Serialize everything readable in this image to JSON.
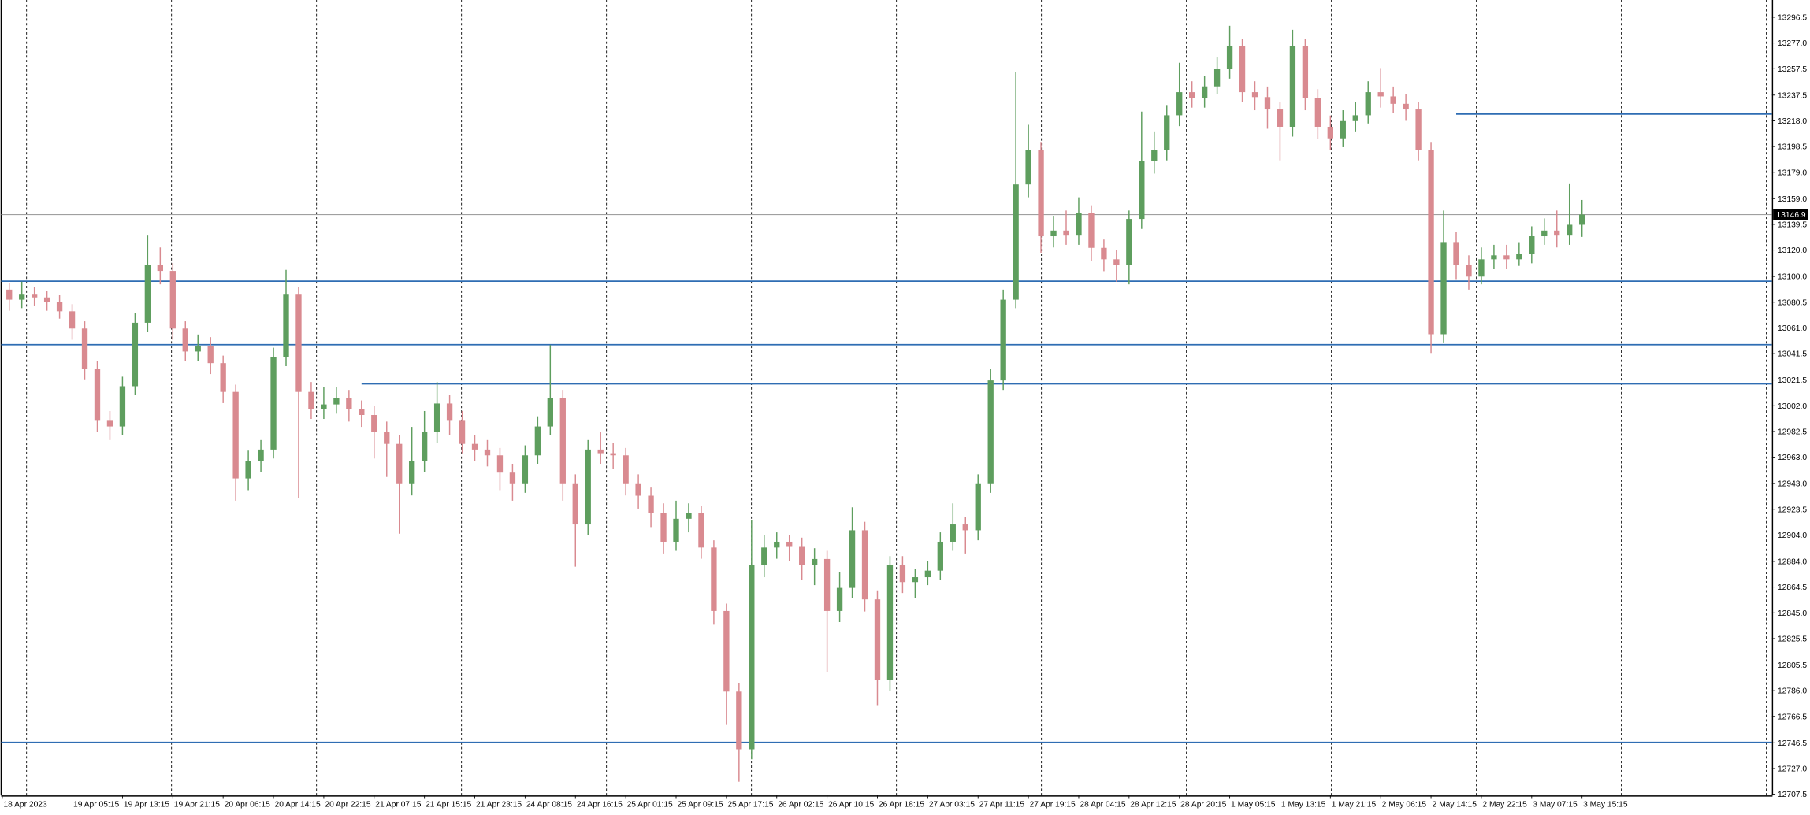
{
  "chart_data": {
    "type": "candlestick",
    "categories": [
      "18 Apr 2023",
      null,
      null,
      null,
      null,
      "19 Apr 05:15",
      null,
      null,
      null,
      "19 Apr 13:15",
      null,
      null,
      null,
      "19 Apr 21:15",
      null,
      null,
      null,
      "20 Apr 06:15",
      null,
      null,
      null,
      "20 Apr 14:15",
      null,
      null,
      null,
      "20 Apr 22:15",
      null,
      null,
      null,
      "21 Apr 07:15",
      null,
      null,
      null,
      "21 Apr 15:15",
      null,
      null,
      null,
      "21 Apr 23:15",
      null,
      null,
      null,
      "24 Apr 08:15",
      null,
      null,
      null,
      "24 Apr 16:15",
      null,
      null,
      null,
      "25 Apr 01:15",
      null,
      null,
      null,
      "25 Apr 09:15",
      null,
      null,
      null,
      "25 Apr 17:15",
      null,
      null,
      null,
      "26 Apr 02:15",
      null,
      null,
      null,
      "26 Apr 10:15",
      null,
      null,
      null,
      "26 Apr 18:15",
      null,
      null,
      null,
      "27 Apr 03:15",
      null,
      null,
      null,
      "27 Apr 11:15",
      null,
      null,
      null,
      "27 Apr 19:15",
      null,
      null,
      null,
      "28 Apr 04:15",
      null,
      null,
      null,
      "28 Apr 12:15",
      null,
      null,
      null,
      "28 Apr 20:15",
      null,
      null,
      null,
      "1 May 05:15",
      null,
      null,
      null,
      "1 May 13:15",
      null,
      null,
      null,
      "1 May 21:15",
      null,
      null,
      null,
      "2 May 06:15",
      null,
      null,
      null,
      "2 May 14:15",
      null,
      null,
      null,
      "2 May 22:15",
      null,
      null,
      null,
      "3 May 07:15",
      null,
      null,
      null,
      "3 May 15:15"
    ],
    "open": [
      13090.0,
      13082.4,
      13086.8,
      13084.1,
      13080.6,
      13073.6,
      13060.5,
      13030.0,
      12990.6,
      12986.3,
      13016.8,
      13064.9,
      13108.6,
      13104.2,
      13060.5,
      13043.1,
      13047.4,
      13034.3,
      13012.5,
      12946.9,
      12960.0,
      12968.8,
      13038.7,
      13086.8,
      13012.5,
      12999.4,
      13003.0,
      13008.1,
      12999.4,
      12995.0,
      12981.9,
      12973.1,
      12942.6,
      12960.0,
      12981.9,
      13003.7,
      12990.6,
      12973.1,
      12968.8,
      12964.4,
      12951.3,
      12942.6,
      12964.4,
      12986.3,
      13008.1,
      12942.6,
      12912.0,
      12968.8,
      12966.0,
      12964.4,
      12942.6,
      12933.8,
      12920.7,
      12898.9,
      12916.3,
      12920.7,
      12894.5,
      12846.4,
      12785.3,
      12741.6,
      12881.4,
      12894.5,
      12898.9,
      12895.0,
      12881.4,
      12885.8,
      12846.4,
      12863.9,
      12907.6,
      12855.2,
      12794.0,
      12881.4,
      12868.3,
      12872.0,
      12877.0,
      12898.9,
      12912.0,
      12907.6,
      12942.6,
      13021.2,
      13082.4,
      13169.8,
      13196.0,
      13130.5,
      13134.8,
      13131.0,
      13147.9,
      13121.7,
      13113.0,
      13108.6,
      13143.6,
      13187.3,
      13196.0,
      13222.2,
      13239.7,
      13235.3,
      13244.1,
      13257.2,
      13274.6,
      13239.7,
      13236.0,
      13226.6,
      13213.5,
      13274.6,
      13235.3,
      13213.5,
      13204.7,
      13217.8,
      13222.2,
      13239.7,
      13236.5,
      13230.9,
      13226.6,
      13196.0,
      13056.2,
      13126.1,
      13108.6,
      13099.9,
      13113.0,
      13116.0,
      13113.0,
      13117.3,
      13130.5,
      13134.8,
      13131.0,
      13139.2
    ],
    "high": [
      13095,
      13096,
      13092,
      13089,
      13086,
      13079,
      13066,
      13036,
      12998,
      13024,
      13072,
      13131,
      13122,
      13110,
      13066,
      13056,
      13054,
      13040,
      13018,
      12968,
      12976,
      13046,
      13105,
      13092,
      13020,
      13016,
      13016,
      13014,
      13006,
      13002,
      12990,
      12980,
      12986,
      12998,
      13020,
      13010,
      12998,
      12980,
      12976,
      12970,
      12958,
      12972,
      12994,
      13048,
      13014,
      12950,
      12976,
      12982,
      12974,
      12970,
      12950,
      12940,
      12928,
      12930,
      12928,
      12926,
      12900,
      12852,
      12792,
      12915,
      12904,
      12906,
      12904,
      12902,
      12894,
      12892,
      12876,
      12925,
      12914,
      12862,
      12888,
      12888,
      12878,
      12884,
      12906,
      12928,
      12918,
      12950,
      13030,
      13090,
      13255,
      13215,
      13202,
      13146,
      13150,
      13160,
      13154,
      13128,
      13120,
      13150,
      13225,
      13210,
      13230,
      13262,
      13248,
      13252,
      13266,
      13290,
      13280,
      13248,
      13244,
      13232,
      13287,
      13280,
      13242,
      13222,
      13226,
      13232,
      13248,
      13258,
      13244,
      13238,
      13232,
      13202,
      13150,
      13134,
      13116,
      13122,
      13124,
      13124,
      13126,
      13138,
      13144,
      13150,
      13170,
      13158
    ],
    "low": [
      13074,
      13076,
      13078,
      13074,
      13068,
      13052,
      13022,
      12982,
      12976,
      12980,
      13010,
      13058,
      13094,
      13052,
      13036,
      13036,
      13026,
      13004,
      12930,
      12938,
      12952,
      12962,
      13032,
      12932,
      12992,
      12992,
      12996,
      12990,
      12986,
      12962,
      12948,
      12905,
      12934,
      12952,
      12974,
      12980,
      12966,
      12960,
      12956,
      12938,
      12930,
      12936,
      12958,
      12980,
      12930,
      12880,
      12904,
      12958,
      12954,
      12934,
      12924,
      12910,
      12890,
      12892,
      12906,
      12886,
      12836,
      12760,
      12717,
      12734,
      12872,
      12886,
      12884,
      12870,
      12866,
      12800,
      12838,
      12856,
      12846,
      12775,
      12786,
      12860,
      12856,
      12866,
      12870,
      12892,
      12890,
      12900,
      12936,
      13014,
      13076,
      13160,
      13118,
      13122,
      13124,
      13124,
      13112,
      13104,
      13096,
      13094,
      13136,
      13178,
      13188,
      13214,
      13228,
      13228,
      13238,
      13250,
      13232,
      13226,
      13212,
      13188,
      13206,
      13226,
      13204,
      13196,
      13198,
      13210,
      13216,
      13228,
      13224,
      13218,
      13188,
      13042,
      13050,
      13098,
      13090,
      13094,
      13106,
      13106,
      13108,
      13110,
      13124,
      13122,
      13124,
      13130
    ],
    "close": [
      13082.4,
      13086.8,
      13084.1,
      13080.6,
      13073.6,
      13060.5,
      13030.0,
      12990.6,
      12986.3,
      13016.8,
      13064.9,
      13108.6,
      13104.2,
      13060.5,
      13043.1,
      13047.4,
      13034.3,
      13012.5,
      12946.9,
      12960.0,
      12968.8,
      13038.7,
      13086.8,
      13012.5,
      12999.4,
      13003.0,
      13008.1,
      12999.4,
      12995.0,
      12981.9,
      12973.1,
      12942.6,
      12960.0,
      12981.9,
      13003.7,
      12990.6,
      12973.1,
      12968.8,
      12964.4,
      12951.3,
      12942.6,
      12964.4,
      12986.3,
      13008.1,
      12942.6,
      12912.0,
      12968.8,
      12966.0,
      12964.4,
      12942.6,
      12933.8,
      12920.7,
      12898.9,
      12916.3,
      12920.7,
      12894.5,
      12846.4,
      12785.3,
      12741.6,
      12881.4,
      12894.5,
      12898.9,
      12895.0,
      12881.4,
      12885.8,
      12846.4,
      12863.9,
      12907.6,
      12855.2,
      12794.0,
      12881.4,
      12868.3,
      12872.0,
      12877.0,
      12898.9,
      12912.0,
      12907.6,
      12942.6,
      13021.2,
      13082.4,
      13169.8,
      13196.0,
      13130.5,
      13134.8,
      13131.0,
      13147.9,
      13121.7,
      13113.0,
      13108.6,
      13143.6,
      13187.3,
      13196.0,
      13222.2,
      13239.7,
      13235.3,
      13244.1,
      13257.2,
      13274.6,
      13239.7,
      13236.0,
      13226.6,
      13213.5,
      13274.6,
      13235.3,
      13213.5,
      13204.7,
      13217.8,
      13222.2,
      13239.7,
      13236.5,
      13230.9,
      13226.6,
      13196.0,
      13056.2,
      13126.1,
      13108.6,
      13099.9,
      13113.0,
      13116.0,
      13113.0,
      13117.3,
      13130.5,
      13134.8,
      13131.0,
      13139.2,
      13146.9
    ],
    "up_color": "#5e9e5e",
    "down_color": "#d98a90",
    "ylim": [
      12706.6,
      13309.6
    ],
    "yticks": [
      {
        "value": 13296.5,
        "label": "13296.5"
      },
      {
        "value": 13277,
        "label": "13277.0"
      },
      {
        "value": 13257.5,
        "label": "13257.5"
      },
      {
        "value": 13237.5,
        "label": "13237.5"
      },
      {
        "value": 13218,
        "label": "13218.0"
      },
      {
        "value": 13198.5,
        "label": "13198.5"
      },
      {
        "value": 13179,
        "label": "13179.0"
      },
      {
        "value": 13159,
        "label": "13159.0"
      },
      {
        "value": 13139.5,
        "label": "13139.5"
      },
      {
        "value": 13120,
        "label": "13120.0"
      },
      {
        "value": 13100,
        "label": "13100.0"
      },
      {
        "value": 13080.5,
        "label": "13080.5"
      },
      {
        "value": 13061,
        "label": "13061.0"
      },
      {
        "value": 13041.5,
        "label": "13041.5"
      },
      {
        "value": 13021.5,
        "label": "13021.5"
      },
      {
        "value": 13002,
        "label": "13002.0"
      },
      {
        "value": 12982.5,
        "label": "12982.5"
      },
      {
        "value": 12963,
        "label": "12963.0"
      },
      {
        "value": 12943,
        "label": "12943.0"
      },
      {
        "value": 12923.5,
        "label": "12923.5"
      },
      {
        "value": 12904,
        "label": "12904.0"
      },
      {
        "value": 12884,
        "label": "12884.0"
      },
      {
        "value": 12864.5,
        "label": "12864.5"
      },
      {
        "value": 12845,
        "label": "12845.0"
      },
      {
        "value": 12825.5,
        "label": "12825.5"
      },
      {
        "value": 12805.5,
        "label": "12805.5"
      },
      {
        "value": 12786,
        "label": "12786.0"
      },
      {
        "value": 12766.5,
        "label": "12766.5"
      },
      {
        "value": 12746.5,
        "label": "12746.5"
      },
      {
        "value": 12727,
        "label": "12727.0"
      },
      {
        "value": 12707.5,
        "label": "12707.5"
      }
    ],
    "current_price": 13146.9,
    "hlines": [
      {
        "value": 13223.1,
        "start_index": 115
      },
      {
        "value": 13096.4
      },
      {
        "value": 13048.3
      },
      {
        "value": 13018.6,
        "start_index": 28
      },
      {
        "value": 12746.8
      }
    ],
    "hline_color": "#2f6db3"
  }
}
